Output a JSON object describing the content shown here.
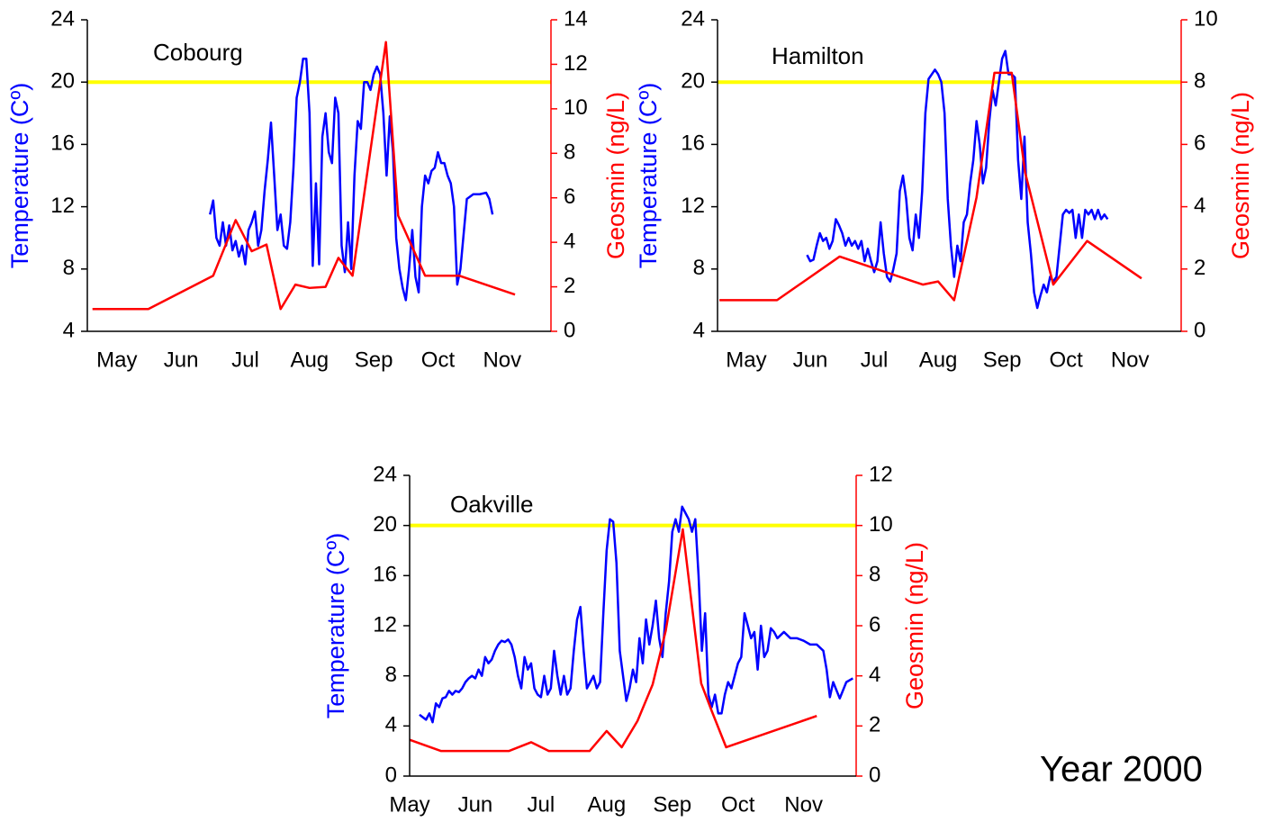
{
  "figure_label": "Year 2000",
  "chart_data": [
    {
      "type": "line",
      "title": "Cobourg",
      "ylabel": "Temperature (Cº)",
      "y2label": "Geosmin (ng/L)",
      "xlim": [
        4.54,
        11.76
      ],
      "xticks": [
        {
          "value": 5,
          "label": "May"
        },
        {
          "value": 6,
          "label": "Jun"
        },
        {
          "value": 7,
          "label": "Jul"
        },
        {
          "value": 8,
          "label": "Aug"
        },
        {
          "value": 9,
          "label": "Sep"
        },
        {
          "value": 10,
          "label": "Oct"
        },
        {
          "value": 11,
          "label": "Nov"
        }
      ],
      "ylim": [
        4,
        24
      ],
      "yticks": [
        4,
        8,
        12,
        16,
        20,
        24
      ],
      "y2lim": [
        0,
        14
      ],
      "y2ticks": [
        0,
        2,
        4,
        6,
        8,
        10,
        12,
        14
      ],
      "hline": {
        "value": 20,
        "color": "#ffff00"
      },
      "series": [
        {
          "color": "#0000ff",
          "x": [
            6.45,
            6.5,
            6.55,
            6.6,
            6.65,
            6.7,
            6.75,
            6.8,
            6.85,
            6.9,
            6.95,
            7,
            7.05,
            7.1,
            7.15,
            7.2,
            7.25,
            7.3,
            7.35,
            7.4,
            7.45,
            7.5,
            7.55,
            7.6,
            7.65,
            7.7,
            7.75,
            7.8,
            7.85,
            7.9,
            7.95,
            8,
            8.05,
            8.1,
            8.15,
            8.2,
            8.25,
            8.3,
            8.35,
            8.4,
            8.45,
            8.5,
            8.55,
            8.6,
            8.65,
            8.7,
            8.75,
            8.8,
            8.85,
            8.9,
            8.95,
            9,
            9.05,
            9.1,
            9.15,
            9.2,
            9.25,
            9.3,
            9.35,
            9.4,
            9.45,
            9.5,
            9.55,
            9.6,
            9.65,
            9.7,
            9.75,
            9.8,
            9.85,
            9.9,
            9.95,
            10,
            10.05,
            10.1,
            10.15,
            10.2,
            10.25,
            10.3,
            10.35,
            10.45,
            10.55,
            10.65,
            10.75,
            10.8,
            10.85
          ],
          "values": [
            11.5,
            12.4,
            10,
            9.5,
            11,
            9.5,
            10.8,
            9.2,
            9.8,
            8.8,
            9.5,
            8.3,
            10.5,
            11,
            11.7,
            9.5,
            10.5,
            13,
            15,
            17.4,
            14,
            10.5,
            11.5,
            9.5,
            9.3,
            11,
            14.5,
            19,
            20,
            21.5,
            21.5,
            18,
            8.2,
            13.5,
            8.3,
            16.5,
            18,
            15.5,
            14.8,
            19,
            18,
            9.5,
            7.8,
            11,
            8,
            14,
            17.5,
            17,
            20,
            20,
            19.5,
            20.5,
            21,
            20.5,
            18,
            14,
            17.8,
            15.5,
            10,
            8,
            6.8,
            6,
            8,
            10.5,
            7.5,
            6.5,
            12,
            14,
            13.5,
            14.3,
            14.5,
            15.5,
            14.8,
            14.8,
            14,
            13.5,
            12,
            7,
            8,
            12.5,
            12.8,
            12.8,
            12.9,
            12.5,
            11.5
          ]
        },
        {
          "color": "#ff0000",
          "axis": "y2",
          "x": [
            4.62,
            5.49,
            6.5,
            6.85,
            7.1,
            7.33,
            7.55,
            7.78,
            8,
            8.25,
            8.45,
            8.67,
            9.19,
            9.38,
            9.8,
            10.33,
            11.2
          ],
          "values": [
            1,
            1,
            2.5,
            5,
            3.6,
            3.9,
            1,
            2.1,
            1.95,
            2,
            3.3,
            2.5,
            13,
            5.2,
            2.5,
            2.5,
            1.65
          ]
        }
      ]
    },
    {
      "type": "line",
      "title": "Hamilton",
      "ylabel": "Temperature (Cº)",
      "y2label": "Geosmin (ng/L)",
      "xlim": [
        4.55,
        11.8
      ],
      "xticks": [
        {
          "value": 5,
          "label": "May"
        },
        {
          "value": 6,
          "label": "Jun"
        },
        {
          "value": 7,
          "label": "Jul"
        },
        {
          "value": 8,
          "label": "Aug"
        },
        {
          "value": 9,
          "label": "Sep"
        },
        {
          "value": 10,
          "label": "Oct"
        },
        {
          "value": 11,
          "label": "Nov"
        }
      ],
      "ylim": [
        4,
        24
      ],
      "yticks": [
        4,
        8,
        12,
        16,
        20,
        24
      ],
      "y2lim": [
        0,
        10
      ],
      "y2ticks": [
        0,
        2,
        4,
        6,
        8,
        10
      ],
      "hline": {
        "value": 20,
        "color": "#ffff00"
      },
      "series": [
        {
          "color": "#0000ff",
          "x": [
            5.95,
            6,
            6.05,
            6.1,
            6.15,
            6.2,
            6.25,
            6.3,
            6.35,
            6.4,
            6.45,
            6.5,
            6.55,
            6.6,
            6.65,
            6.7,
            6.75,
            6.8,
            6.85,
            6.9,
            6.95,
            7,
            7.05,
            7.1,
            7.15,
            7.2,
            7.25,
            7.3,
            7.35,
            7.4,
            7.45,
            7.5,
            7.55,
            7.6,
            7.65,
            7.7,
            7.75,
            7.8,
            7.85,
            7.9,
            7.95,
            8,
            8.05,
            8.1,
            8.15,
            8.2,
            8.25,
            8.3,
            8.35,
            8.4,
            8.45,
            8.5,
            8.55,
            8.6,
            8.65,
            8.7,
            8.75,
            8.8,
            8.85,
            8.9,
            8.95,
            9,
            9.05,
            9.1,
            9.15,
            9.2,
            9.25,
            9.3,
            9.35,
            9.4,
            9.45,
            9.5,
            9.55,
            9.6,
            9.65,
            9.7,
            9.75,
            9.8,
            9.85,
            9.9,
            9.95,
            10,
            10.05,
            10.1,
            10.15,
            10.2,
            10.25,
            10.3,
            10.35,
            10.4,
            10.45,
            10.5,
            10.55,
            10.6,
            10.65
          ],
          "values": [
            8.9,
            8.5,
            8.6,
            9.5,
            10.3,
            9.8,
            10,
            9.3,
            9.8,
            11.2,
            10.8,
            10.3,
            9.5,
            10,
            9.5,
            9.8,
            9.3,
            9.8,
            8.5,
            9.3,
            8.5,
            7.8,
            8.5,
            11,
            9,
            7.5,
            7.2,
            8,
            9,
            13,
            14,
            12.5,
            10,
            9.2,
            11.5,
            10,
            13,
            18,
            20.2,
            20.5,
            20.8,
            20.5,
            20,
            18,
            12.5,
            9.5,
            7.5,
            9.5,
            8.5,
            11,
            11.5,
            13.5,
            15,
            17.5,
            16,
            13.5,
            14.5,
            17.5,
            19.5,
            18.5,
            20,
            21.5,
            22,
            20.5,
            20.5,
            20.3,
            15,
            12.5,
            16.5,
            11,
            9,
            6.5,
            5.5,
            6.3,
            7,
            6.5,
            7.5,
            7.2,
            7.5,
            9.5,
            11.5,
            11.8,
            11.6,
            11.8,
            10,
            11.5,
            10,
            11.8,
            11.5,
            11.8,
            11.2,
            11.8,
            11.2,
            11.5,
            11.2
          ]
        },
        {
          "color": "#ff0000",
          "axis": "y2",
          "x": [
            4.58,
            5.48,
            6.46,
            7.76,
            8,
            8.25,
            8.6,
            8.88,
            9.15,
            9.36,
            9.8,
            10.33,
            11.18
          ],
          "values": [
            1,
            1,
            2.4,
            1.5,
            1.6,
            1,
            4.3,
            8.3,
            8.3,
            5.1,
            1.5,
            2.9,
            1.7
          ]
        }
      ]
    },
    {
      "type": "line",
      "title": "Oakville",
      "ylabel": "Temperature (Cº)",
      "y2label": "Geosmin (ng/L)",
      "xlim": [
        5,
        11.8
      ],
      "xticks": [
        {
          "value": 5,
          "label": "May"
        },
        {
          "value": 6,
          "label": "Jun"
        },
        {
          "value": 7,
          "label": "Jul"
        },
        {
          "value": 8,
          "label": "Aug"
        },
        {
          "value": 9,
          "label": "Sep"
        },
        {
          "value": 10,
          "label": "Oct"
        },
        {
          "value": 11,
          "label": "Nov"
        }
      ],
      "ylim": [
        0,
        24
      ],
      "yticks": [
        0,
        4,
        8,
        12,
        16,
        20,
        24
      ],
      "y2lim": [
        0,
        12
      ],
      "y2ticks": [
        0,
        2,
        4,
        6,
        8,
        10,
        12
      ],
      "hline": {
        "value": 20,
        "color": "#ffff00"
      },
      "series": [
        {
          "color": "#0000ff",
          "x": [
            5.15,
            5.2,
            5.25,
            5.3,
            5.35,
            5.4,
            5.45,
            5.5,
            5.55,
            5.6,
            5.65,
            5.7,
            5.75,
            5.8,
            5.85,
            5.9,
            5.95,
            6,
            6.05,
            6.1,
            6.15,
            6.2,
            6.25,
            6.3,
            6.35,
            6.4,
            6.45,
            6.5,
            6.55,
            6.6,
            6.65,
            6.7,
            6.75,
            6.8,
            6.85,
            6.9,
            6.95,
            7,
            7.05,
            7.1,
            7.15,
            7.2,
            7.25,
            7.3,
            7.35,
            7.4,
            7.45,
            7.5,
            7.55,
            7.6,
            7.65,
            7.7,
            7.75,
            7.8,
            7.85,
            7.9,
            7.95,
            8,
            8.05,
            8.1,
            8.15,
            8.2,
            8.25,
            8.3,
            8.35,
            8.4,
            8.45,
            8.5,
            8.55,
            8.6,
            8.65,
            8.7,
            8.75,
            8.8,
            8.85,
            8.9,
            8.95,
            9,
            9.05,
            9.1,
            9.15,
            9.2,
            9.25,
            9.3,
            9.35,
            9.4,
            9.45,
            9.5,
            9.55,
            9.6,
            9.65,
            9.7,
            9.75,
            9.8,
            9.85,
            9.9,
            9.95,
            10,
            10.05,
            10.1,
            10.15,
            10.2,
            10.25,
            10.3,
            10.35,
            10.4,
            10.45,
            10.5,
            10.55,
            10.6,
            10.7,
            10.8,
            10.9,
            11,
            11.1,
            11.2,
            11.3,
            11.35,
            11.4,
            11.45,
            11.55,
            11.65,
            11.75
          ],
          "values": [
            4.9,
            4.7,
            4.5,
            5,
            4.3,
            5.8,
            5.5,
            6.2,
            6.3,
            6.8,
            6.5,
            6.8,
            6.7,
            7,
            7.5,
            7.8,
            8,
            7.8,
            8.5,
            8,
            9.5,
            9,
            9.3,
            10,
            10.5,
            10.8,
            10.7,
            10.9,
            10.5,
            9.5,
            8,
            7,
            9.5,
            8.5,
            9,
            7,
            6.5,
            6.3,
            8,
            6.5,
            7,
            10,
            8,
            6.5,
            8,
            6.5,
            7,
            10,
            12.5,
            13.5,
            10,
            7,
            7.5,
            8,
            7,
            7.5,
            13,
            18,
            20.5,
            20.3,
            17,
            10,
            8,
            6,
            7,
            8.5,
            7.5,
            11,
            9,
            12.5,
            10.5,
            12,
            14,
            11,
            9.5,
            13,
            15.5,
            19.5,
            20.5,
            19.5,
            21.5,
            21,
            20.5,
            19.5,
            20.5,
            16,
            10,
            13,
            6.5,
            5.5,
            6.5,
            5,
            5,
            6.5,
            7.5,
            7,
            8,
            9,
            9.5,
            13,
            12,
            11,
            11.5,
            8.5,
            12,
            9.5,
            10,
            11.8,
            11.5,
            11,
            11.5,
            11,
            11,
            10.8,
            10.5,
            10.5,
            10,
            8.5,
            6.3,
            7.5,
            6.2,
            7.5,
            7.8
          ]
        },
        {
          "color": "#ff0000",
          "axis": "y2",
          "x": [
            5,
            5.48,
            6.51,
            6.85,
            7.12,
            7.74,
            8,
            8.23,
            8.47,
            8.7,
            8.9,
            9.16,
            9.44,
            9.6,
            9.82,
            11.2
          ],
          "values": [
            1.45,
            1,
            1,
            1.35,
            1,
            1,
            1.8,
            1.15,
            2.2,
            3.65,
            5.8,
            9.85,
            3.7,
            2.6,
            1.15,
            2.4
          ]
        }
      ]
    }
  ]
}
